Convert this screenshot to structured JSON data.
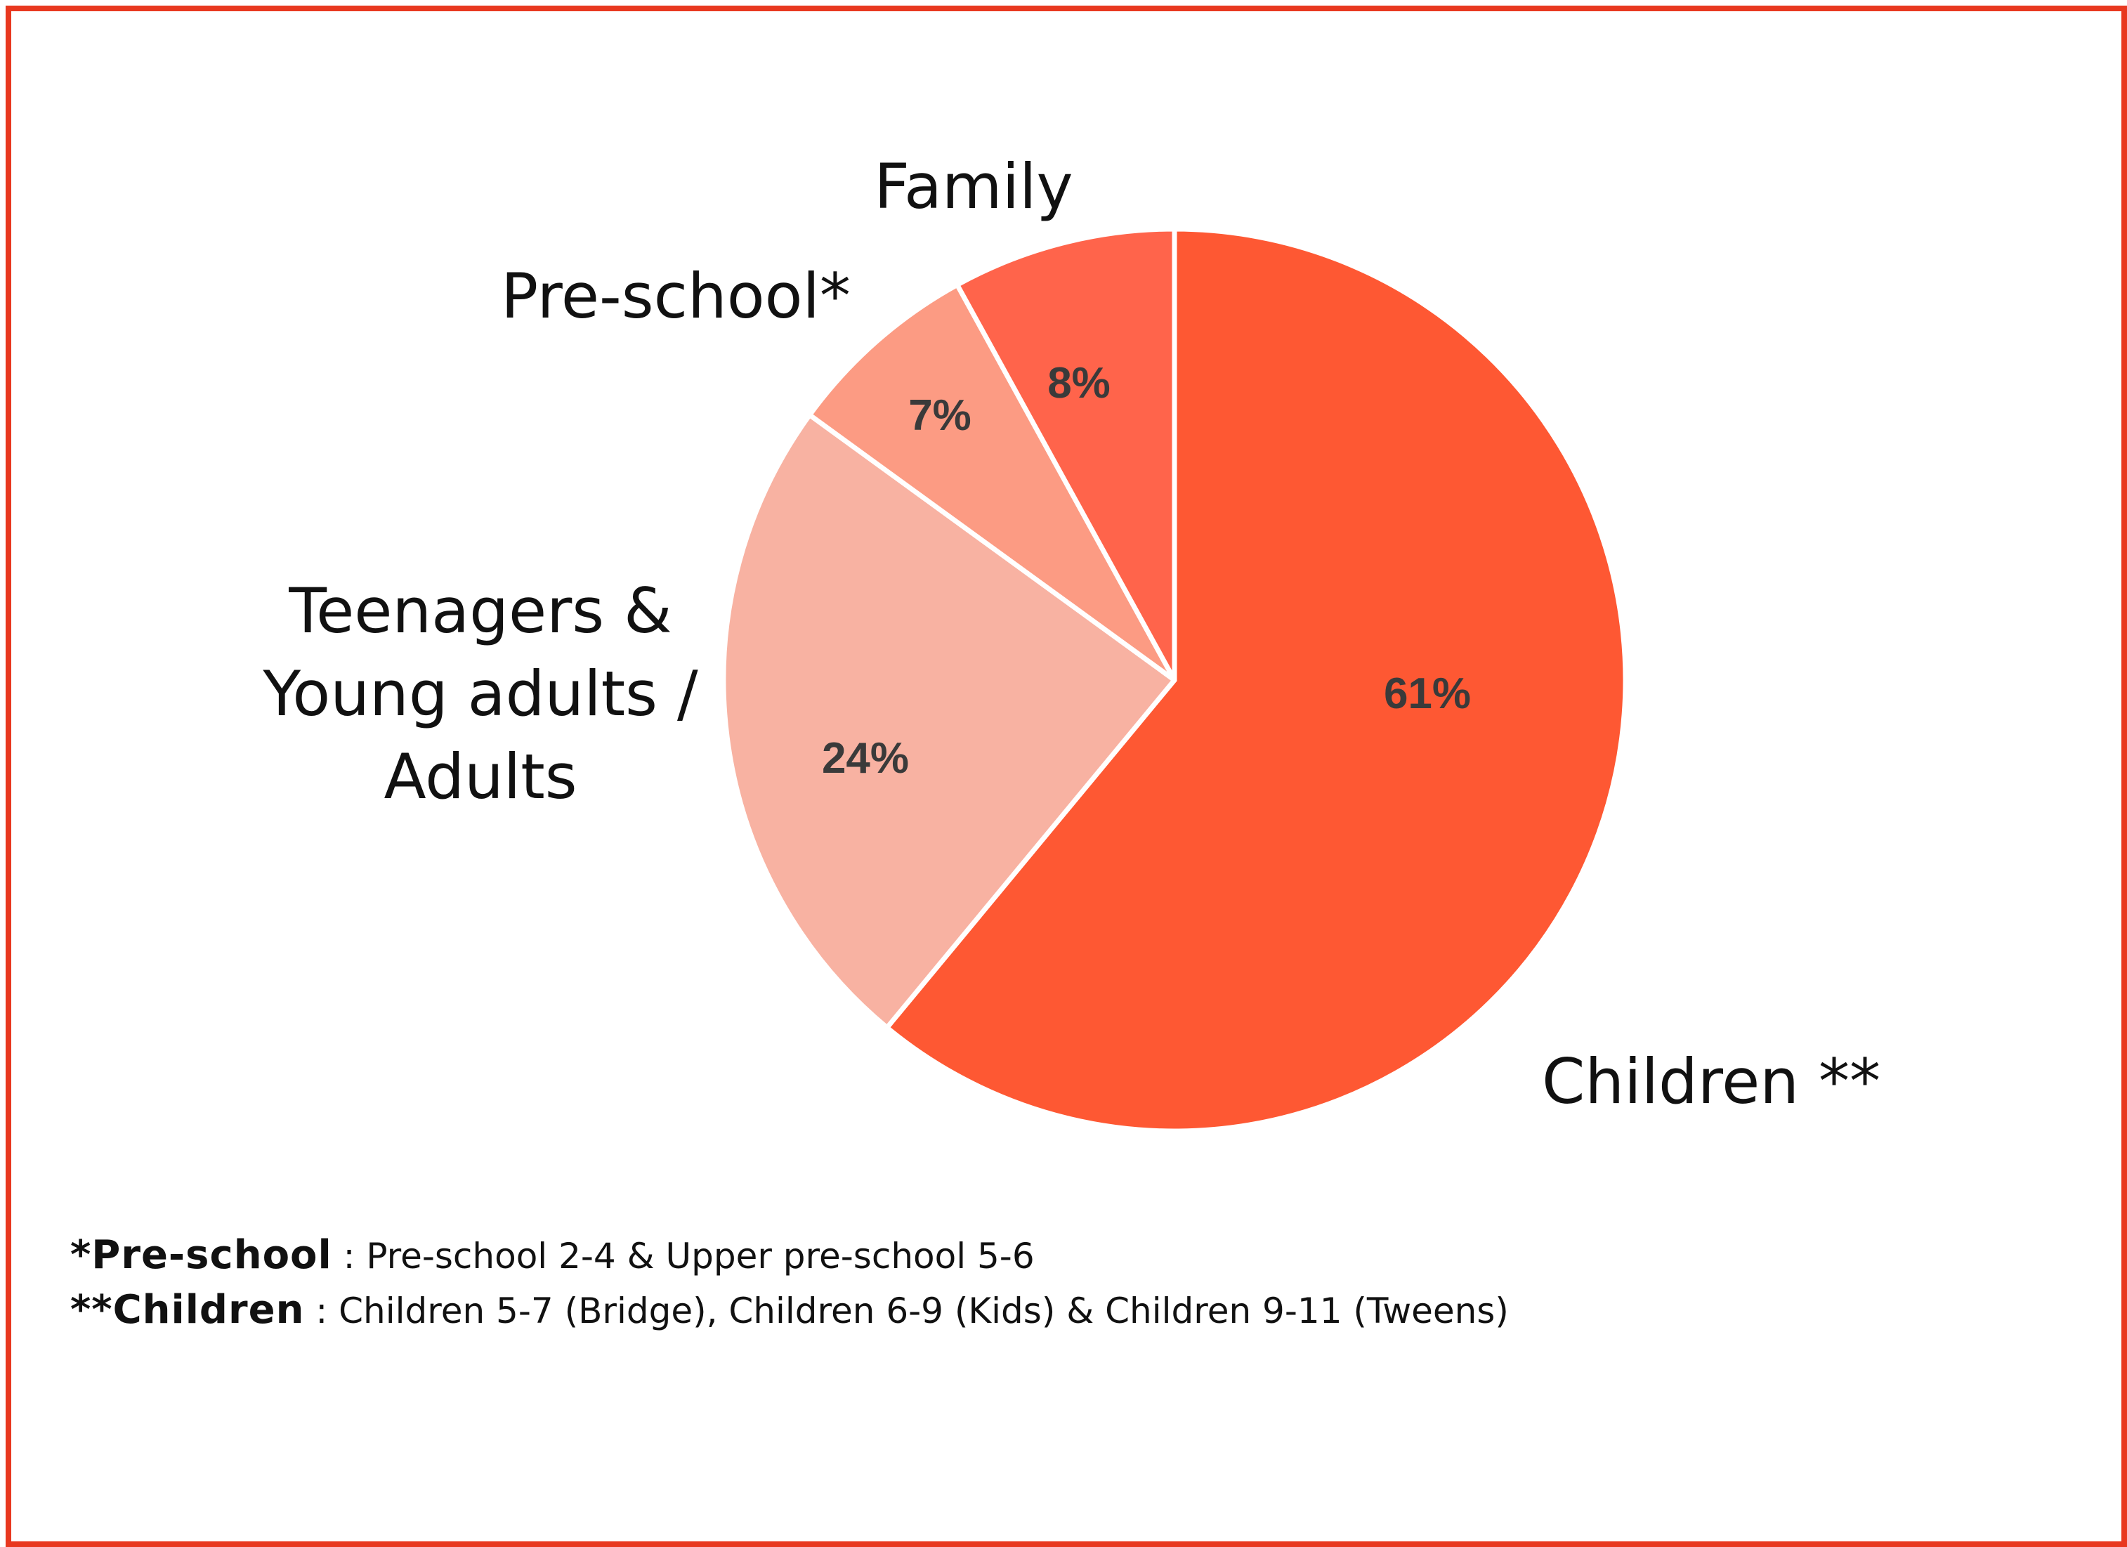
{
  "chart_data": {
    "type": "pie",
    "slices": [
      {
        "label": "Children **",
        "value": 61,
        "value_label": "61%",
        "color": "#fe5833"
      },
      {
        "label": [
          "Teenagers &",
          "Young adults /",
          "Adults"
        ],
        "value": 24,
        "value_label": "24%",
        "color": "#f8b2a2"
      },
      {
        "label": "Pre-school*",
        "value": 7,
        "value_label": "7%",
        "color": "#fc9b83"
      },
      {
        "label": "Family",
        "value": 8,
        "value_label": "8%",
        "color": "#ff644b"
      }
    ],
    "start": "12 o'clock",
    "direction": "clockwise",
    "border_color": "#e8381f"
  },
  "footnotes": [
    {
      "term": "*Pre-school",
      "text": " : Pre-school 2-4 & Upper pre-school 5-6"
    },
    {
      "term": "**Children",
      "text": " : Children 5-7 (Bridge), Children 6-9 (Kids) & Children 9-11 (Tweens)"
    }
  ]
}
